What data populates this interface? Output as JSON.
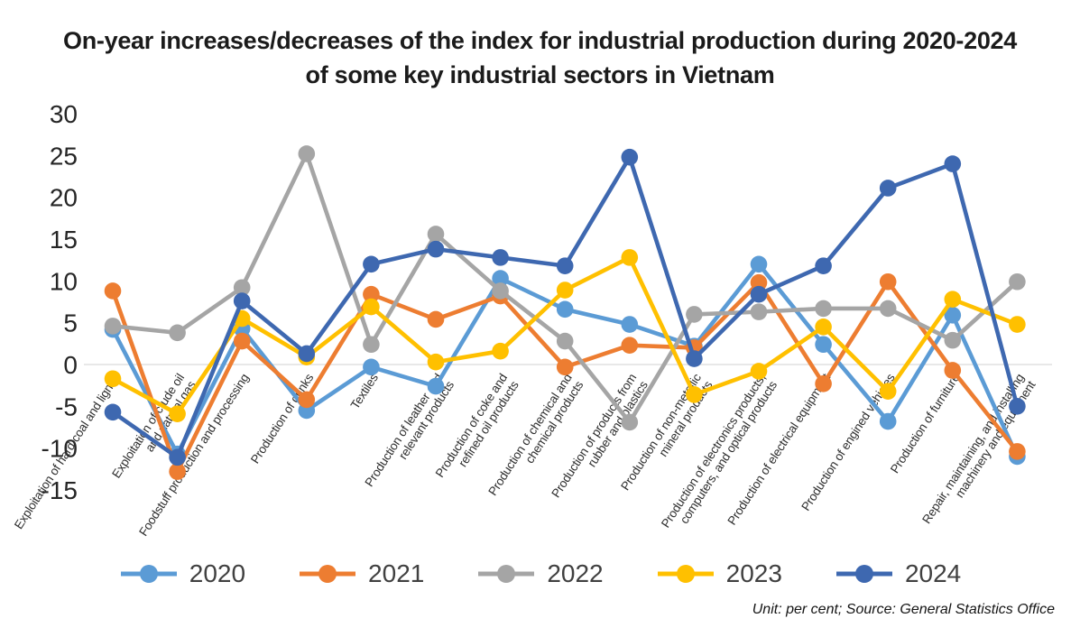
{
  "title": {
    "line1": "On-year increases/decreases of the index for industrial production during 2020-2024",
    "line2": "of some key industrial sectors in Vietnam"
  },
  "footer": {
    "note": "Unit: per cent; Source: General Statistics Office"
  },
  "chart_data": {
    "type": "line",
    "title": "On-year increases/decreases of the index for industrial production during 2020-2024 of some key industrial sectors in Vietnam",
    "unit": "per cent",
    "source": "General Statistics Office",
    "grid": "zero-line-only",
    "legend_position": "bottom",
    "y_axis": {
      "min": -15,
      "max": 30,
      "tick_step": 5,
      "ticks": [
        30,
        25,
        20,
        15,
        10,
        5,
        0,
        -5,
        -10,
        -15
      ]
    },
    "categories": [
      {
        "label": "Exploitation of hard coal and lignite",
        "lines": [
          "Exploitation of hard coal and lignite"
        ]
      },
      {
        "label": "Exploitation of crude oil and natural gas",
        "lines": [
          "Exploitation of crude oil",
          "and natural gas"
        ]
      },
      {
        "label": "Foodstuff production and processing",
        "lines": [
          "Foodstuff production and processing"
        ]
      },
      {
        "label": "Production of drinks",
        "lines": [
          "Production of drinks"
        ]
      },
      {
        "label": "Textiles",
        "lines": [
          "Textiles"
        ]
      },
      {
        "label": "Production of leather and relevant products",
        "lines": [
          "Production of leather and",
          "relevant products"
        ]
      },
      {
        "label": "Production of coke and refined oil products",
        "lines": [
          "Production of coke and",
          "refined oil products"
        ]
      },
      {
        "label": "Production of chemical and chemical products",
        "lines": [
          "Production of chemical and",
          "chemical products"
        ]
      },
      {
        "label": "Production of products from rubber and plastics",
        "lines": [
          "Production of products from",
          "rubber and plastics"
        ]
      },
      {
        "label": "Production of non-metallic mineral products",
        "lines": [
          "Production of non-metallic",
          "mineral products"
        ]
      },
      {
        "label": "Production of electronics products, computers, and optical products",
        "lines": [
          "Production of electronics products,",
          "computers, and optical products"
        ]
      },
      {
        "label": "Production of electrical equipment",
        "lines": [
          "Production of electrical equipment"
        ]
      },
      {
        "label": "Production of engined vehicles",
        "lines": [
          "Production of engined vehicles"
        ]
      },
      {
        "label": "Production of furniture",
        "lines": [
          "Production of furniture"
        ]
      },
      {
        "label": "Repair, maintaining, and installing machinery and equipment",
        "lines": [
          "Repair, maintaining, and installing",
          "machinery and equipment"
        ]
      }
    ],
    "series": [
      {
        "name": "2020",
        "color": "#5B9BD5",
        "values": [
          4.2,
          -10.7,
          4.3,
          -5.5,
          -0.3,
          -2.6,
          10.3,
          6.6,
          4.8,
          2.2,
          12.0,
          2.4,
          -6.8,
          5.9,
          -11.0
        ]
      },
      {
        "name": "2021",
        "color": "#ED7D31",
        "values": [
          8.8,
          -12.8,
          2.8,
          -4.2,
          8.4,
          5.4,
          8.2,
          -0.3,
          2.3,
          2.0,
          9.8,
          -2.3,
          9.9,
          -0.7,
          -10.4
        ]
      },
      {
        "name": "2022",
        "color": "#A5A5A5",
        "values": [
          4.6,
          3.8,
          9.2,
          25.2,
          2.4,
          15.6,
          8.8,
          2.8,
          -6.9,
          6.0,
          6.3,
          6.7,
          6.7,
          2.9,
          9.9
        ]
      },
      {
        "name": "2023",
        "color": "#FFC000",
        "values": [
          -1.7,
          -5.9,
          5.5,
          0.9,
          6.9,
          0.3,
          1.6,
          8.9,
          12.8,
          -3.6,
          -0.8,
          4.5,
          -3.2,
          7.8,
          4.8
        ]
      },
      {
        "name": "2024",
        "color": "#3E68B0",
        "values": [
          -5.7,
          -11.1,
          7.6,
          1.3,
          12.0,
          13.8,
          12.8,
          11.8,
          24.8,
          0.7,
          8.4,
          11.8,
          21.1,
          24.0,
          -5.0
        ]
      }
    ]
  }
}
